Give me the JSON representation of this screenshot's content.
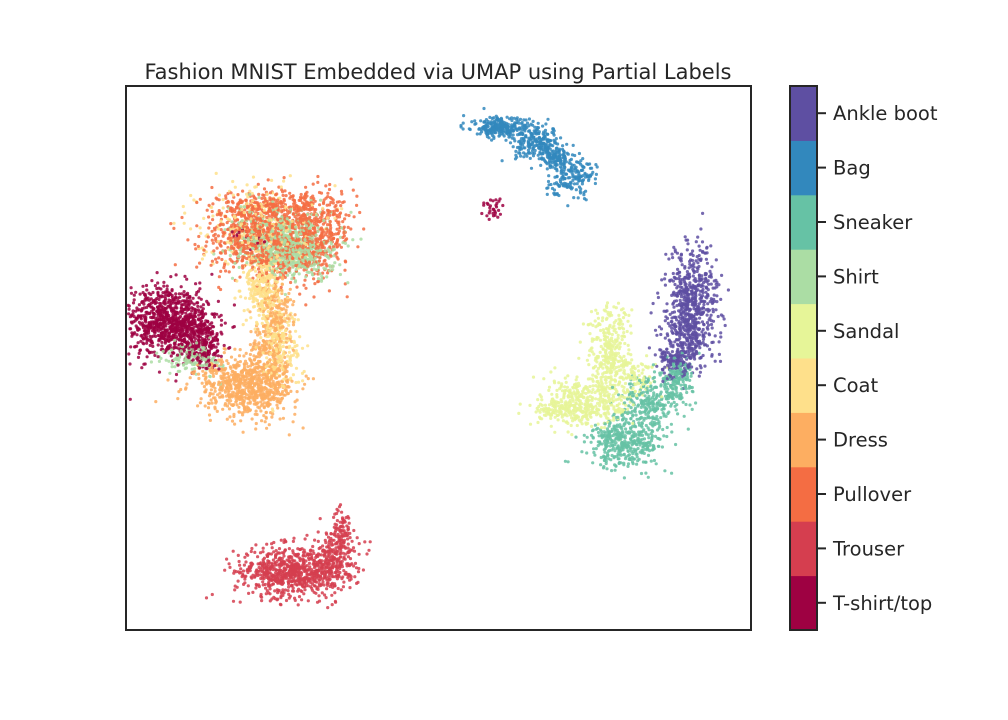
{
  "chart_data": {
    "type": "scatter",
    "title": "Fashion MNIST Embedded via UMAP using Partial Labels",
    "xlabel": "",
    "ylabel": "",
    "show_axis_ticks": false,
    "grid": false,
    "colorbar": {
      "position": "right",
      "labels": [
        "T-shirt/top",
        "Trouser",
        "Pullover",
        "Dress",
        "Coat",
        "Sandal",
        "Shirt",
        "Sneaker",
        "Bag",
        "Ankle boot"
      ],
      "colors": [
        "#9e0142",
        "#d53e4f",
        "#f46d43",
        "#fdae61",
        "#fee08b",
        "#e6f598",
        "#abdda4",
        "#66c2a5",
        "#3288bd",
        "#5e4fa2"
      ]
    },
    "clusters": [
      {
        "label": "T-shirt/top",
        "color": "#9e0142",
        "blobs": [
          [
            -6.2,
            2.4,
            0.45,
            0.45,
            520
          ],
          [
            -5.6,
            2.3,
            0.4,
            0.35,
            380
          ],
          [
            -5.2,
            1.8,
            0.3,
            0.3,
            220
          ],
          [
            1.8,
            5.1,
            0.15,
            0.15,
            30
          ],
          [
            -4.0,
            4.5,
            0.2,
            0.2,
            20
          ]
        ]
      },
      {
        "label": "Trouser",
        "color": "#d53e4f",
        "blobs": [
          [
            -3.3,
            -3.6,
            0.55,
            0.3,
            420
          ],
          [
            -2.7,
            -3.6,
            0.5,
            0.3,
            320
          ],
          [
            -2.0,
            -3.3,
            0.3,
            0.35,
            200
          ],
          [
            -1.8,
            -2.6,
            0.12,
            0.25,
            80
          ]
        ]
      },
      {
        "label": "Pullover",
        "color": "#f46d43",
        "blobs": [
          [
            -4.0,
            4.5,
            0.6,
            0.45,
            520
          ],
          [
            -2.6,
            4.5,
            0.55,
            0.45,
            480
          ],
          [
            -3.3,
            4.0,
            0.6,
            0.35,
            260
          ],
          [
            -3.3,
            5.1,
            0.7,
            0.2,
            200
          ]
        ]
      },
      {
        "label": "Dress",
        "color": "#fdae61",
        "blobs": [
          [
            -4.3,
            0.9,
            0.55,
            0.3,
            420
          ],
          [
            -3.8,
            0.7,
            0.45,
            0.35,
            320
          ],
          [
            -3.6,
            1.6,
            0.25,
            0.35,
            200
          ],
          [
            -3.4,
            2.6,
            0.2,
            0.4,
            160
          ]
        ]
      },
      {
        "label": "Coat",
        "color": "#fee08b",
        "blobs": [
          [
            -3.7,
            3.2,
            0.2,
            0.45,
            300
          ],
          [
            -3.9,
            4.7,
            0.7,
            0.5,
            260
          ],
          [
            -3.3,
            1.8,
            0.25,
            0.5,
            200
          ]
        ]
      },
      {
        "label": "Sandal",
        "color": "#e6f598",
        "blobs": [
          [
            4.6,
            1.6,
            0.25,
            0.6,
            320
          ],
          [
            4.1,
            0.5,
            0.55,
            0.3,
            320
          ],
          [
            3.6,
            0.2,
            0.45,
            0.15,
            150
          ],
          [
            5.2,
            1.1,
            0.25,
            0.25,
            100
          ]
        ]
      },
      {
        "label": "Shirt",
        "color": "#abdda4",
        "blobs": [
          [
            -3.3,
            4.3,
            0.6,
            0.35,
            460
          ],
          [
            -2.8,
            4.0,
            0.4,
            0.3,
            260
          ],
          [
            -5.4,
            1.5,
            0.35,
            0.2,
            140
          ]
        ]
      },
      {
        "label": "Sneaker",
        "color": "#66c2a5",
        "blobs": [
          [
            5.0,
            -0.5,
            0.45,
            0.3,
            400
          ],
          [
            5.6,
            0.4,
            0.35,
            0.35,
            260
          ],
          [
            6.2,
            1.0,
            0.2,
            0.25,
            150
          ]
        ]
      },
      {
        "label": "Bag",
        "color": "#3288bd",
        "blobs": [
          [
            2.0,
            7.0,
            0.35,
            0.12,
            250
          ],
          [
            2.9,
            6.6,
            0.3,
            0.2,
            220
          ],
          [
            3.7,
            5.9,
            0.3,
            0.25,
            180
          ],
          [
            3.3,
            6.3,
            0.15,
            0.12,
            100
          ]
        ]
      },
      {
        "label": "Ankle boot",
        "color": "#5e4fa2",
        "blobs": [
          [
            6.6,
            3.0,
            0.3,
            0.6,
            460
          ],
          [
            6.5,
            2.0,
            0.3,
            0.4,
            260
          ],
          [
            6.2,
            1.4,
            0.2,
            0.2,
            120
          ]
        ]
      }
    ],
    "xlim": [
      -7,
      8
    ],
    "ylim": [
      -5,
      8
    ]
  }
}
